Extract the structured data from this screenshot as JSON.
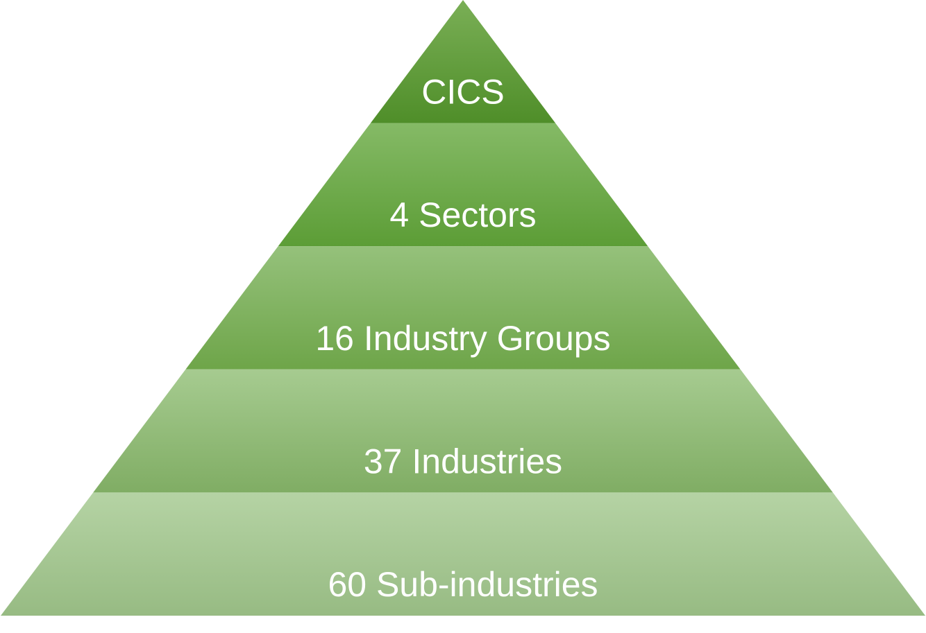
{
  "pyramid": {
    "levels": [
      {
        "label": "CICS",
        "color_top": "#7aaf56",
        "color_bottom": "#4f8e29"
      },
      {
        "label": "4 Sectors",
        "color_top": "#85ba66",
        "color_bottom": "#5c9d36"
      },
      {
        "label": "16 Industry Groups",
        "color_top": "#95c17b",
        "color_bottom": "#6ea549"
      },
      {
        "label": "37 Industries",
        "color_top": "#a6cb90",
        "color_bottom": "#80ad64"
      },
      {
        "label": "60 Sub-industries",
        "color_top": "#b5d3a4",
        "color_bottom": "#97bb83"
      }
    ]
  }
}
